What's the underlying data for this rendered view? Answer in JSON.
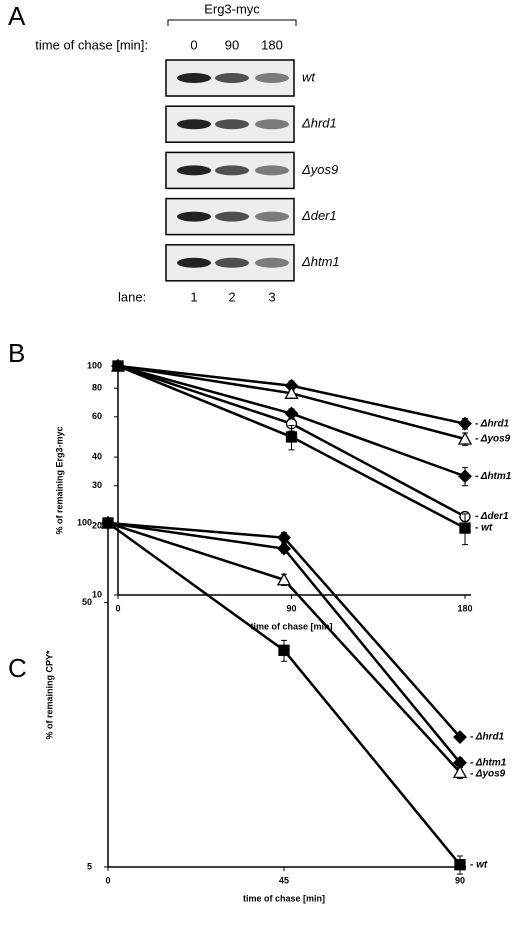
{
  "panel_a": {
    "label": "A",
    "header": "Erg3-myc",
    "time_label": "time of chase [min]:",
    "times": [
      "0",
      "90",
      "180"
    ],
    "strains": [
      "wt",
      "Δhrd1",
      "Δyos9",
      "Δder1",
      "Δhtm1"
    ],
    "lane_label": "lane:",
    "lanes": [
      "1",
      "2",
      "3"
    ]
  },
  "chart_data": [
    {
      "type": "line",
      "label": "B",
      "ylabel": "% of remaining Erg3-myc",
      "xlabel": "time of chase [min]",
      "log_y": true,
      "x": [
        0,
        90,
        180
      ],
      "xlim": [
        0,
        180
      ],
      "xticks": [
        0,
        90,
        180
      ],
      "ylim": [
        10,
        100
      ],
      "yticks": [
        10,
        20,
        30,
        40,
        60,
        80,
        100
      ],
      "series": [
        {
          "name": "- Δhrd1",
          "color": "#000000",
          "marker": "diamond",
          "filled": true,
          "values": [
            100,
            82,
            56
          ],
          "errors": [
            null,
            4,
            3
          ]
        },
        {
          "name": "- Δyos9",
          "color": "#000000",
          "marker": "triangle",
          "filled": false,
          "values": [
            100,
            76,
            48
          ],
          "errors": [
            null,
            3,
            3
          ]
        },
        {
          "name": "- Δhtm1",
          "color": "#000000",
          "marker": "diamond",
          "filled": true,
          "values": [
            100,
            62,
            33
          ],
          "errors": [
            null,
            3,
            3
          ]
        },
        {
          "name": "- Δder1",
          "color": "#000000",
          "marker": "circle",
          "filled": false,
          "values": [
            100,
            56,
            22
          ],
          "errors": [
            null,
            4,
            1
          ]
        },
        {
          "name": "- wt",
          "color": "#000000",
          "marker": "square",
          "filled": true,
          "values": [
            100,
            49,
            19.6
          ],
          "errors": [
            null,
            6,
            3
          ]
        }
      ]
    },
    {
      "type": "line",
      "label": "C",
      "ylabel": "% of remaining CPY*",
      "xlabel": "time of chase [min]",
      "log_y": true,
      "x": [
        0,
        45,
        90
      ],
      "xlim": [
        0,
        90
      ],
      "xticks": [
        0,
        45,
        90
      ],
      "ylim": [
        5,
        100
      ],
      "yticks": [
        5,
        50,
        100
      ],
      "series": [
        {
          "name": "- Δhrd1",
          "color": "#000000",
          "marker": "diamond",
          "filled": true,
          "values": [
            100,
            88,
            15.5
          ],
          "errors": [
            null,
            4,
            0.5
          ]
        },
        {
          "name": "- Δhtm1",
          "color": "#000000",
          "marker": "diamond",
          "filled": true,
          "values": [
            100,
            80,
            12.4
          ],
          "errors": [
            null,
            3,
            0.5
          ]
        },
        {
          "name": "- Δyos9",
          "color": "#000000",
          "marker": "triangle",
          "filled": false,
          "values": [
            100,
            61,
            11.4
          ],
          "errors": [
            null,
            3,
            0.6
          ]
        },
        {
          "name": "- wt",
          "color": "#000000",
          "marker": "square",
          "filled": true,
          "values": [
            100,
            33,
            5.1
          ],
          "errors": [
            null,
            3,
            0.4
          ]
        }
      ]
    }
  ]
}
